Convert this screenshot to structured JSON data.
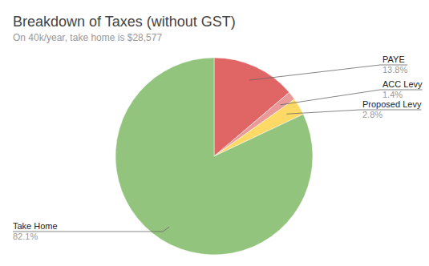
{
  "chart_data": {
    "type": "pie",
    "title": "Breakdown of Taxes (without GST)",
    "subtitle": "On 40k/year, take home is $28,577",
    "categories": [
      "PAYE",
      "ACC Levy",
      "Proposed Levy",
      "Take Home"
    ],
    "values": [
      13.8,
      1.4,
      2.8,
      82.1
    ],
    "value_labels": [
      "13.8%",
      "1.4%",
      "2.8%",
      "82.1%"
    ],
    "colors": [
      "#e06666",
      "#ea9999",
      "#ffd966",
      "#93c47d"
    ],
    "data_labels": true
  }
}
